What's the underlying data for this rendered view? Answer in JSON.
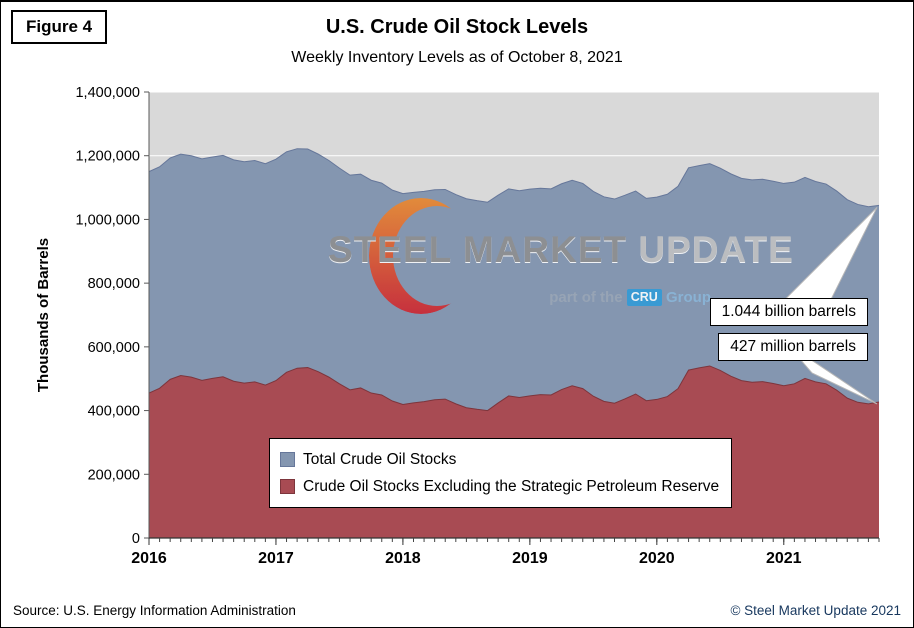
{
  "figure_label": "Figure 4",
  "watermark": {
    "brand_part1": "STEEL",
    "brand_part2": "MARKET",
    "brand_part3": "UPDATE",
    "tagline_prefix": "part of the",
    "tagline_cru": "CRU",
    "tagline_suffix": "Group"
  },
  "footer": {
    "source": "Source: U.S. Energy Information Administration",
    "copyright": "© Steel Market Update 2021"
  },
  "chart_data": {
    "type": "area",
    "title": "U.S. Crude Oil Stock Levels",
    "subtitle": "Weekly Inventory Levels as of October 8, 2021",
    "ylabel": "Thousands of Barrels",
    "xlabel": "",
    "grid": true,
    "legend_position": "inside-bottom-left",
    "plot_bg": "#D9D9D9",
    "grid_color": "#FFFFFF",
    "ylim": [
      0,
      1400000
    ],
    "ytick_step": 200000,
    "xlim": [
      2016.0,
      2021.75
    ],
    "xticks": [
      2016,
      2017,
      2018,
      2019,
      2020,
      2021
    ],
    "x_unit": "decimal_year",
    "x": [
      2016.0,
      2016.083,
      2016.167,
      2016.25,
      2016.333,
      2016.417,
      2016.5,
      2016.583,
      2016.667,
      2016.75,
      2016.833,
      2016.917,
      2017.0,
      2017.083,
      2017.167,
      2017.25,
      2017.333,
      2017.417,
      2017.5,
      2017.583,
      2017.667,
      2017.75,
      2017.833,
      2017.917,
      2018.0,
      2018.083,
      2018.167,
      2018.25,
      2018.333,
      2018.417,
      2018.5,
      2018.583,
      2018.667,
      2018.75,
      2018.833,
      2018.917,
      2019.0,
      2019.083,
      2019.167,
      2019.25,
      2019.333,
      2019.417,
      2019.5,
      2019.583,
      2019.667,
      2019.75,
      2019.833,
      2019.917,
      2020.0,
      2020.083,
      2020.167,
      2020.25,
      2020.333,
      2020.417,
      2020.5,
      2020.583,
      2020.667,
      2020.75,
      2020.833,
      2020.917,
      2021.0,
      2021.083,
      2021.167,
      2021.25,
      2021.333,
      2021.417,
      2021.5,
      2021.583,
      2021.667,
      2021.75
    ],
    "series": [
      {
        "name": "Total Crude Oil Stocks",
        "color": "#8496B0",
        "edge": "#66779A",
        "values": [
          1150000,
          1165000,
          1193000,
          1205000,
          1200000,
          1190000,
          1196000,
          1201000,
          1187000,
          1181000,
          1185000,
          1175000,
          1189000,
          1212000,
          1222000,
          1221000,
          1205000,
          1185000,
          1161000,
          1139000,
          1142000,
          1123000,
          1114000,
          1092000,
          1081000,
          1085000,
          1088000,
          1093000,
          1094000,
          1078000,
          1065000,
          1059000,
          1054000,
          1076000,
          1096000,
          1090000,
          1095000,
          1098000,
          1096000,
          1112000,
          1123000,
          1113000,
          1088000,
          1071000,
          1064000,
          1076000,
          1089000,
          1066000,
          1070000,
          1079000,
          1104000,
          1162000,
          1169000,
          1175000,
          1161000,
          1143000,
          1129000,
          1124000,
          1126000,
          1120000,
          1113000,
          1117000,
          1132000,
          1119000,
          1111000,
          1089000,
          1062000,
          1047000,
          1040000,
          1044000
        ]
      },
      {
        "name": "Crude Oil Stocks Excluding the Strategic Petroleum Reserve",
        "color": "#A84B53",
        "edge": "#7D353C",
        "values": [
          455000,
          470000,
          498000,
          510000,
          505000,
          495000,
          501000,
          506000,
          492000,
          486000,
          490000,
          480000,
          494000,
          520000,
          533000,
          535000,
          522000,
          505000,
          484000,
          465000,
          471000,
          455000,
          449000,
          430000,
          419000,
          424000,
          428000,
          434000,
          436000,
          421000,
          409000,
          404000,
          400000,
          424000,
          446000,
          441000,
          446000,
          450000,
          449000,
          466000,
          478000,
          469000,
          445000,
          429000,
          423000,
          437000,
          452000,
          431000,
          435000,
          444000,
          469000,
          527000,
          534000,
          540000,
          526000,
          508000,
          494000,
          489000,
          491000,
          485000,
          478000,
          484000,
          501000,
          490000,
          484000,
          464000,
          439000,
          426000,
          421000,
          427000
        ]
      }
    ],
    "annotations": [
      {
        "text": "1.044 billion barrels",
        "points_to": "total-series-end"
      },
      {
        "text": "427 million barrels",
        "points_to": "commercial-series-end"
      }
    ]
  }
}
